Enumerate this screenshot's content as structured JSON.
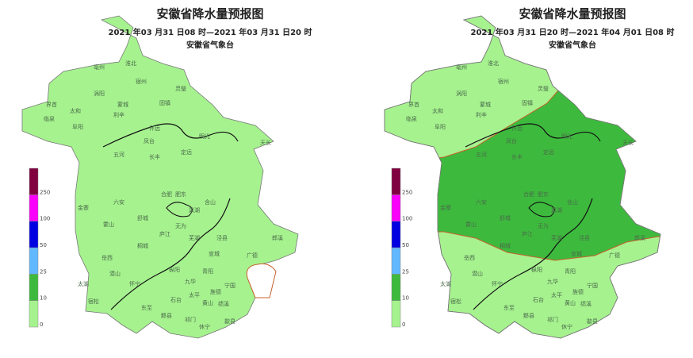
{
  "maps": [
    {
      "title": "安徽省降水量预报图",
      "subtitle": "2021 年03 月31 日08 时—2021 年03 月31 日20 时",
      "issuer": "安徽省气象台"
    },
    {
      "title": "安徽省降水量预报图",
      "subtitle": "2021 年03 月31 日20 时—2021 年04 月01 日08 时",
      "issuer": "安徽省气象台"
    }
  ],
  "legend": {
    "levels": [
      {
        "label": "0",
        "color": "#a6f28f"
      },
      {
        "label": "10",
        "color": "#3dba3d"
      },
      {
        "label": "25",
        "color": "#61b8ff"
      },
      {
        "label": "50",
        "color": "#0000e1"
      },
      {
        "label": "100",
        "color": "#fa00fa"
      },
      {
        "label": "250",
        "color": "#800040"
      }
    ]
  },
  "cities": [
    "亳州",
    "淮北",
    "涡阳",
    "宿州",
    "灵璧",
    "界首",
    "太和",
    "蒙城",
    "固镇",
    "临泉",
    "阜阳",
    "利辛",
    "五河",
    "凤台",
    "怀远",
    "明光",
    "长丰",
    "定远",
    "天长",
    "六安",
    "合肥",
    "肥东",
    "金寨",
    "舒城",
    "巢湖",
    "霍山",
    "庐江",
    "含山",
    "芜湖",
    "郎溪",
    "岳西",
    "桐城",
    "无为",
    "宣城",
    "广德",
    "潜山",
    "枞阳",
    "青阳",
    "泾县",
    "宁国",
    "太湖",
    "怀宁",
    "九华",
    "太平",
    "旌德",
    "宿松",
    "东至",
    "石台",
    "黄山",
    "绩溪",
    "祁门",
    "黟县",
    "休宁",
    "歙县"
  ]
}
